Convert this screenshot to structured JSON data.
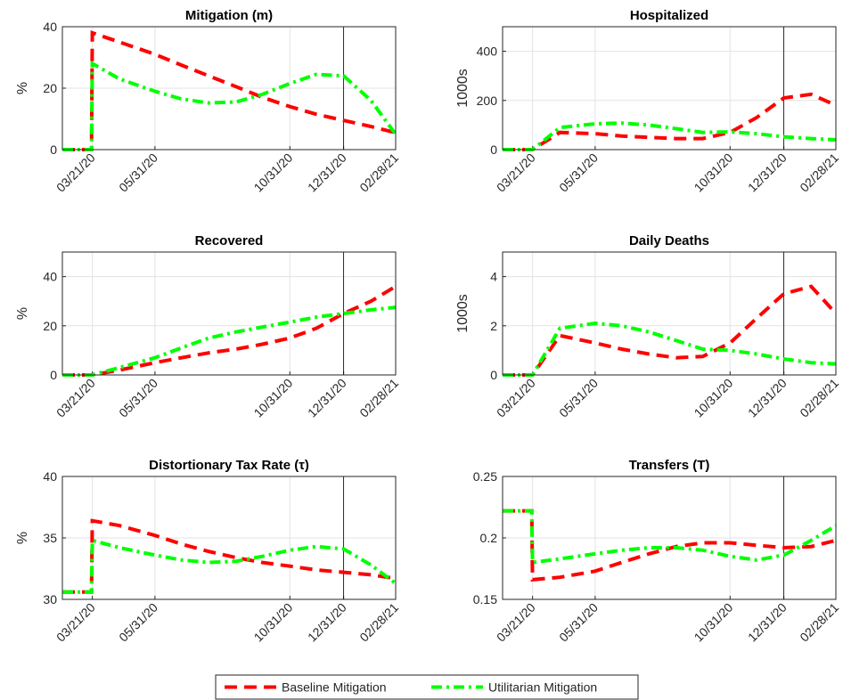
{
  "chart_data": [
    {
      "type": "line",
      "title": "Mitigation (m)",
      "ylabel": "%",
      "x": [
        "02/16/20",
        "03/20/20",
        "03/21/20",
        "04/21/20",
        "05/31/20",
        "06/30/20",
        "07/31/20",
        "08/31/20",
        "09/30/20",
        "10/31/20",
        "11/30/20",
        "12/31/20",
        "01/31/21",
        "02/28/21"
      ],
      "xlim": [
        "02/16/20",
        "02/28/21"
      ],
      "xticks": [
        "03/21/20",
        "05/31/20",
        "10/31/20",
        "12/31/20",
        "02/28/21"
      ],
      "vline": "12/31/20",
      "ylim": [
        0,
        40
      ],
      "yticks": [
        0,
        20,
        40
      ],
      "grid": true,
      "series": [
        {
          "name": "Baseline Mitigation",
          "color": "#ff0000",
          "values": [
            0,
            0,
            38,
            35,
            31,
            27.5,
            24,
            20.5,
            17,
            14,
            11.5,
            9.5,
            7.5,
            5.5
          ]
        },
        {
          "name": "Utilitarian Mitigation",
          "color": "#00ff00",
          "values": [
            0,
            0,
            28,
            23,
            19,
            16.5,
            15.2,
            15.5,
            18,
            21.5,
            24.5,
            24,
            16,
            5
          ]
        }
      ]
    },
    {
      "type": "line",
      "title": "Hospitalized",
      "ylabel": "1000s",
      "x": [
        "02/16/20",
        "03/20/20",
        "03/21/20",
        "04/21/20",
        "05/31/20",
        "06/30/20",
        "07/31/20",
        "08/31/20",
        "09/30/20",
        "10/31/20",
        "11/30/20",
        "12/31/20",
        "01/31/21",
        "02/28/21"
      ],
      "xlim": [
        "02/16/20",
        "02/28/21"
      ],
      "xticks": [
        "03/21/20",
        "05/31/20",
        "10/31/20",
        "12/31/20",
        "02/28/21"
      ],
      "vline": "12/31/20",
      "ylim": [
        0,
        500
      ],
      "yticks": [
        0,
        200,
        400
      ],
      "grid": true,
      "series": [
        {
          "color": "#ff0000",
          "values": [
            0,
            0,
            0,
            70,
            65,
            55,
            50,
            45,
            45,
            70,
            130,
            210,
            225,
            180
          ]
        },
        {
          "color": "#00ff00",
          "values": [
            0,
            0,
            0,
            90,
            105,
            108,
            100,
            85,
            70,
            72,
            65,
            52,
            45,
            40
          ]
        }
      ]
    },
    {
      "type": "line",
      "title": "Recovered",
      "ylabel": "%",
      "x": [
        "02/16/20",
        "03/20/20",
        "03/21/20",
        "04/21/20",
        "05/31/20",
        "06/30/20",
        "07/31/20",
        "08/31/20",
        "09/30/20",
        "10/31/20",
        "11/30/20",
        "12/31/20",
        "01/31/21",
        "02/28/21"
      ],
      "xlim": [
        "02/16/20",
        "02/28/21"
      ],
      "xticks": [
        "03/21/20",
        "05/31/20",
        "10/31/20",
        "12/31/20",
        "02/28/21"
      ],
      "vline": "12/31/20",
      "ylim": [
        0,
        50
      ],
      "yticks": [
        0,
        20,
        40
      ],
      "grid": true,
      "series": [
        {
          "color": "#ff0000",
          "values": [
            0,
            0,
            0,
            2,
            5,
            7,
            9,
            10.5,
            12.5,
            15,
            19,
            25,
            30,
            36
          ]
        },
        {
          "color": "#00ff00",
          "values": [
            0,
            0,
            0,
            3,
            7,
            11,
            15,
            17.5,
            19.5,
            21.5,
            23.5,
            25,
            26.5,
            27.5
          ]
        }
      ]
    },
    {
      "type": "line",
      "title": "Daily Deaths",
      "ylabel": "1000s",
      "x": [
        "02/16/20",
        "03/20/20",
        "03/21/20",
        "04/21/20",
        "05/31/20",
        "06/30/20",
        "07/31/20",
        "08/31/20",
        "09/30/20",
        "10/31/20",
        "11/30/20",
        "12/31/20",
        "01/31/21",
        "02/28/21"
      ],
      "xlim": [
        "02/16/20",
        "02/28/21"
      ],
      "xticks": [
        "03/21/20",
        "05/31/20",
        "10/31/20",
        "12/31/20",
        "02/28/21"
      ],
      "vline": "12/31/20",
      "ylim": [
        0,
        5
      ],
      "yticks": [
        0,
        2,
        4
      ],
      "grid": true,
      "series": [
        {
          "color": "#ff0000",
          "values": [
            0,
            0,
            0,
            1.6,
            1.3,
            1.05,
            0.85,
            0.7,
            0.75,
            1.3,
            2.3,
            3.3,
            3.6,
            2.5
          ]
        },
        {
          "color": "#00ff00",
          "values": [
            0,
            0,
            0,
            1.9,
            2.1,
            2.0,
            1.75,
            1.4,
            1.05,
            1.0,
            0.85,
            0.65,
            0.5,
            0.45
          ]
        }
      ]
    },
    {
      "type": "line",
      "title": "Distortionary Tax Rate (τ)",
      "ylabel": "%",
      "x": [
        "02/16/20",
        "03/20/20",
        "03/21/20",
        "04/21/20",
        "05/31/20",
        "06/30/20",
        "07/31/20",
        "08/31/20",
        "09/30/20",
        "10/31/20",
        "11/30/20",
        "12/31/20",
        "01/31/21",
        "02/28/21"
      ],
      "xlim": [
        "02/16/20",
        "02/28/21"
      ],
      "xticks": [
        "03/21/20",
        "05/31/20",
        "10/31/20",
        "12/31/20",
        "02/28/21"
      ],
      "vline": "12/31/20",
      "ylim": [
        30,
        40
      ],
      "yticks": [
        30,
        35,
        40
      ],
      "grid": true,
      "series": [
        {
          "color": "#ff0000",
          "values": [
            30.6,
            30.6,
            36.4,
            36,
            35.2,
            34.5,
            33.9,
            33.4,
            33,
            32.7,
            32.4,
            32.2,
            32,
            31.7
          ]
        },
        {
          "color": "#00ff00",
          "values": [
            30.6,
            30.6,
            34.8,
            34.2,
            33.6,
            33.2,
            33.0,
            33.1,
            33.5,
            34.0,
            34.3,
            34.1,
            32.8,
            31.3
          ]
        }
      ]
    },
    {
      "type": "line",
      "title": "Transfers (T)",
      "x": [
        "02/16/20",
        "03/20/20",
        "03/21/20",
        "04/21/20",
        "05/31/20",
        "06/30/20",
        "07/31/20",
        "08/31/20",
        "09/30/20",
        "10/31/20",
        "11/30/20",
        "12/31/20",
        "01/31/21",
        "02/28/21"
      ],
      "xlim": [
        "02/16/20",
        "02/28/21"
      ],
      "xticks": [
        "03/21/20",
        "05/31/20",
        "10/31/20",
        "12/31/20",
        "02/28/21"
      ],
      "vline": "12/31/20",
      "ylim": [
        0.15,
        0.25
      ],
      "yticks": [
        0.15,
        0.2,
        0.25
      ],
      "grid": true,
      "series": [
        {
          "color": "#ff0000",
          "values": [
            0.222,
            0.222,
            0.166,
            0.168,
            0.173,
            0.18,
            0.187,
            0.193,
            0.196,
            0.196,
            0.194,
            0.192,
            0.193,
            0.198
          ]
        },
        {
          "color": "#00ff00",
          "values": [
            0.222,
            0.222,
            0.18,
            0.183,
            0.187,
            0.19,
            0.192,
            0.192,
            0.19,
            0.185,
            0.182,
            0.186,
            0.198,
            0.21
          ]
        }
      ]
    }
  ]
}
